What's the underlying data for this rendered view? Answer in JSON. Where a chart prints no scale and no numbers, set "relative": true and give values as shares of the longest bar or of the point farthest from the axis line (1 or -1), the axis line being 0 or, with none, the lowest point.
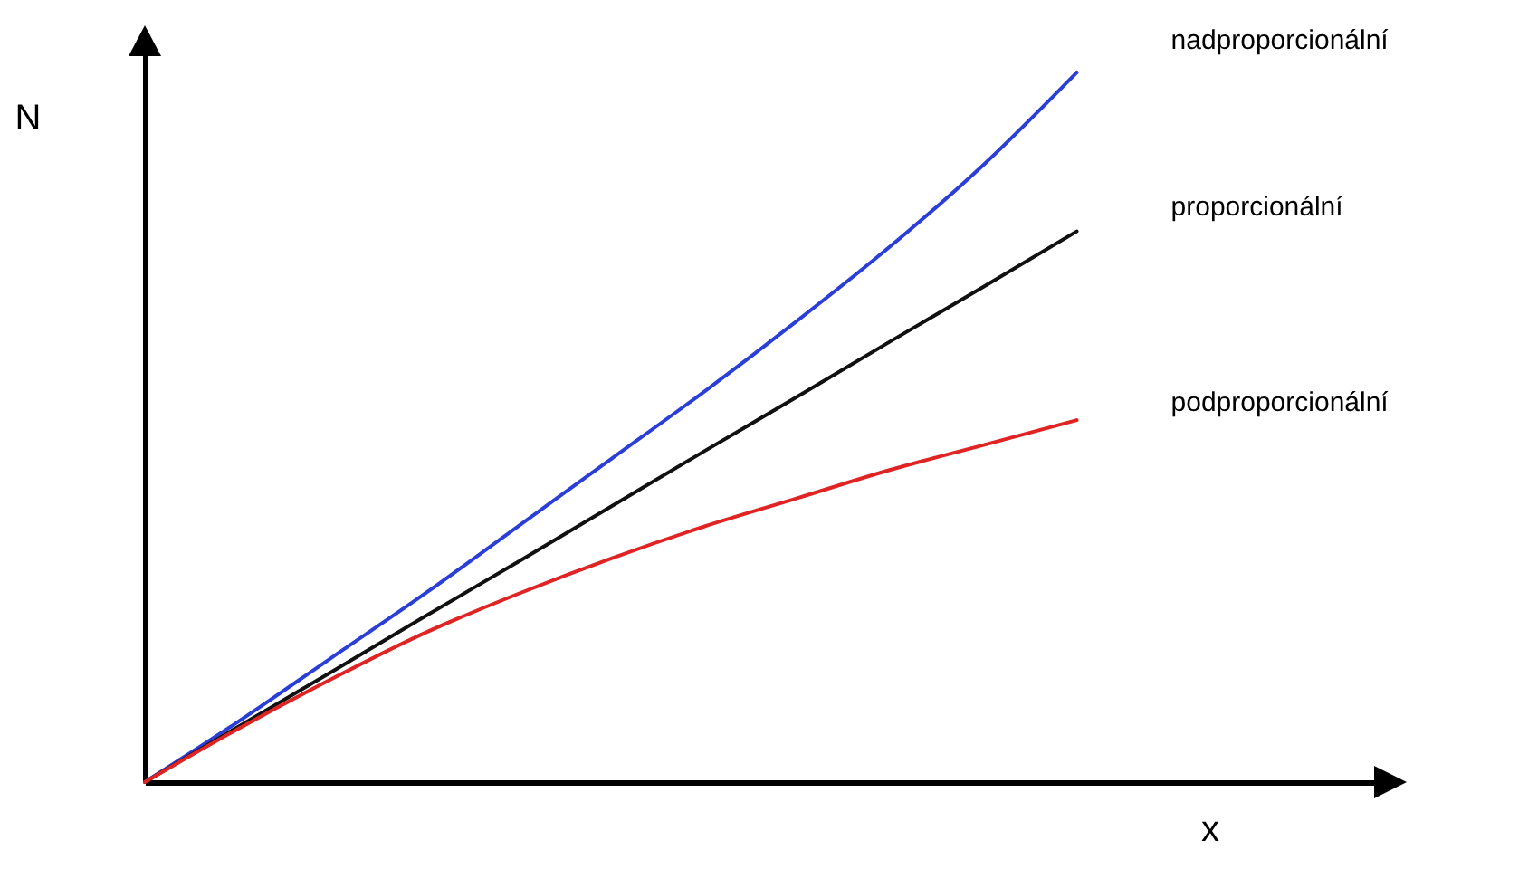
{
  "chart_data": {
    "type": "line",
    "relative": true,
    "xlabel": "x",
    "ylabel": "N",
    "categories": [
      null,
      null,
      null,
      null,
      null,
      null,
      null,
      null,
      null,
      null,
      null
    ],
    "series": [
      {
        "name": "nadproporcionální",
        "color": "#2b3fd6",
        "values": [
          0,
          0.085,
          0.175,
          0.265,
          0.36,
          0.455,
          0.55,
          0.65,
          0.755,
          0.87,
          1.0
        ]
      },
      {
        "name": "proporcionální",
        "color": "#111111",
        "values": [
          0,
          0.078,
          0.155,
          0.233,
          0.31,
          0.388,
          0.466,
          0.543,
          0.621,
          0.698,
          0.776
        ]
      },
      {
        "name": "podproporcionální",
        "color": "#e02424",
        "values": [
          0,
          0.075,
          0.145,
          0.21,
          0.265,
          0.315,
          0.36,
          0.4,
          0.44,
          0.475,
          0.51
        ]
      }
    ],
    "marker": "none",
    "line_style": "solid"
  }
}
